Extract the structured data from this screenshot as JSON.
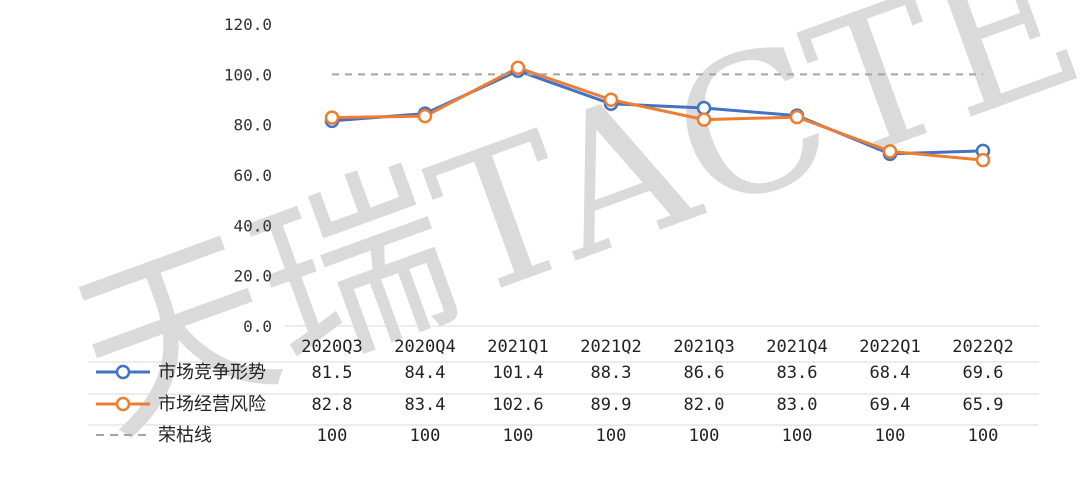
{
  "watermark": "天瑞TACTER",
  "chart_data": {
    "type": "line",
    "categories": [
      "2020Q3",
      "2020Q4",
      "2021Q1",
      "2021Q2",
      "2021Q3",
      "2021Q4",
      "2022Q1",
      "2022Q2"
    ],
    "ylim": [
      0,
      120
    ],
    "yticks": [
      "0.0",
      "20.0",
      "40.0",
      "60.0",
      "80.0",
      "100.0",
      "120.0"
    ],
    "series": [
      {
        "name": "市场竞争形势",
        "color": "#4472C4",
        "values": [
          81.5,
          84.4,
          101.4,
          88.3,
          86.6,
          83.6,
          68.4,
          69.6
        ],
        "labels": [
          "81.5",
          "84.4",
          "101.4",
          "88.3",
          "86.6",
          "83.6",
          "68.4",
          "69.6"
        ]
      },
      {
        "name": "市场经营风险",
        "color": "#ED7D31",
        "values": [
          82.8,
          83.4,
          102.6,
          89.9,
          82.0,
          83.0,
          69.4,
          65.9
        ],
        "labels": [
          "82.8",
          "83.4",
          "102.6",
          "89.9",
          "82.0",
          "83.0",
          "69.4",
          "65.9"
        ]
      },
      {
        "name": "荣枯线",
        "color": "#A5A5A5",
        "dashed": true,
        "values": [
          100,
          100,
          100,
          100,
          100,
          100,
          100,
          100
        ],
        "labels": [
          "100",
          "100",
          "100",
          "100",
          "100",
          "100",
          "100",
          "100"
        ]
      }
    ],
    "legend": "data-table-left",
    "grid": false
  }
}
